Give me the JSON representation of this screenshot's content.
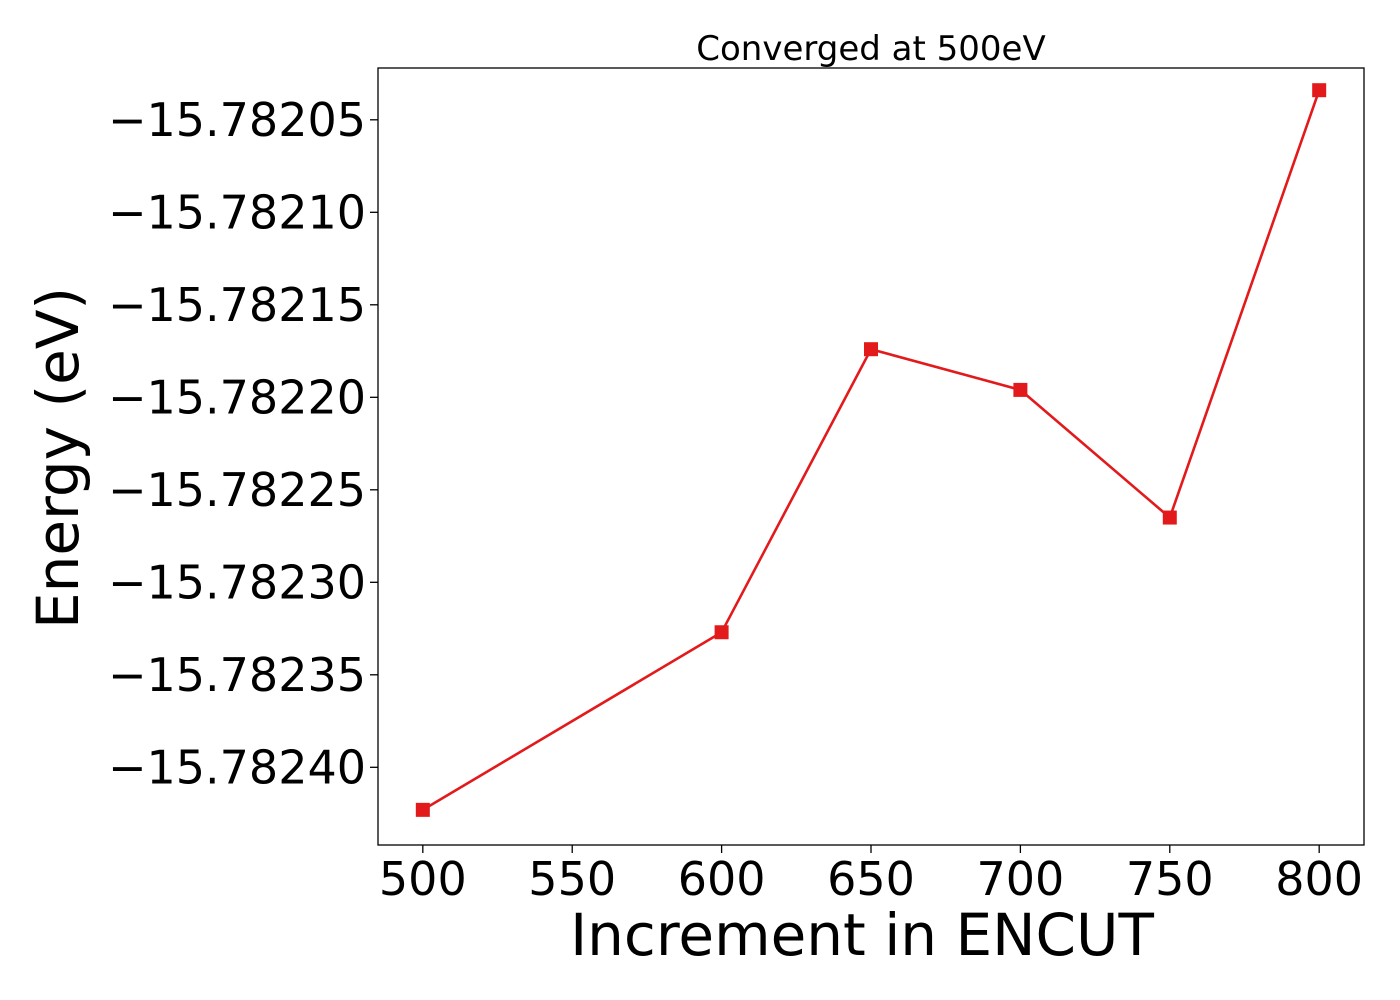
{
  "chart_data": {
    "type": "line",
    "title": "Converged at 500eV",
    "xlabel": "Increment in ENCUT",
    "ylabel": "Energy (eV)",
    "series": [
      {
        "color": "#e31a1c",
        "marker": "square",
        "x": [
          500,
          600,
          650,
          700,
          750,
          800
        ],
        "y": [
          -15.782423,
          -15.782327,
          -15.782174,
          -15.782196,
          -15.782265,
          -15.782034
        ]
      }
    ],
    "xticks": [
      500,
      550,
      600,
      650,
      700,
      750,
      800
    ],
    "xtick_labels": [
      "500",
      "550",
      "600",
      "650",
      "700",
      "750",
      "800"
    ],
    "yticks": [
      -15.78205,
      -15.7821,
      -15.78215,
      -15.7822,
      -15.78225,
      -15.7823,
      -15.78235,
      -15.7824
    ],
    "ytick_labels": [
      "−15.78205",
      "−15.78210",
      "−15.78215",
      "−15.78220",
      "−15.78225",
      "−15.78230",
      "−15.78235",
      "−15.78240"
    ],
    "xlim": [
      485,
      815
    ],
    "ylim": [
      -15.782442,
      -15.782022
    ],
    "grid": false,
    "legend": "none"
  }
}
